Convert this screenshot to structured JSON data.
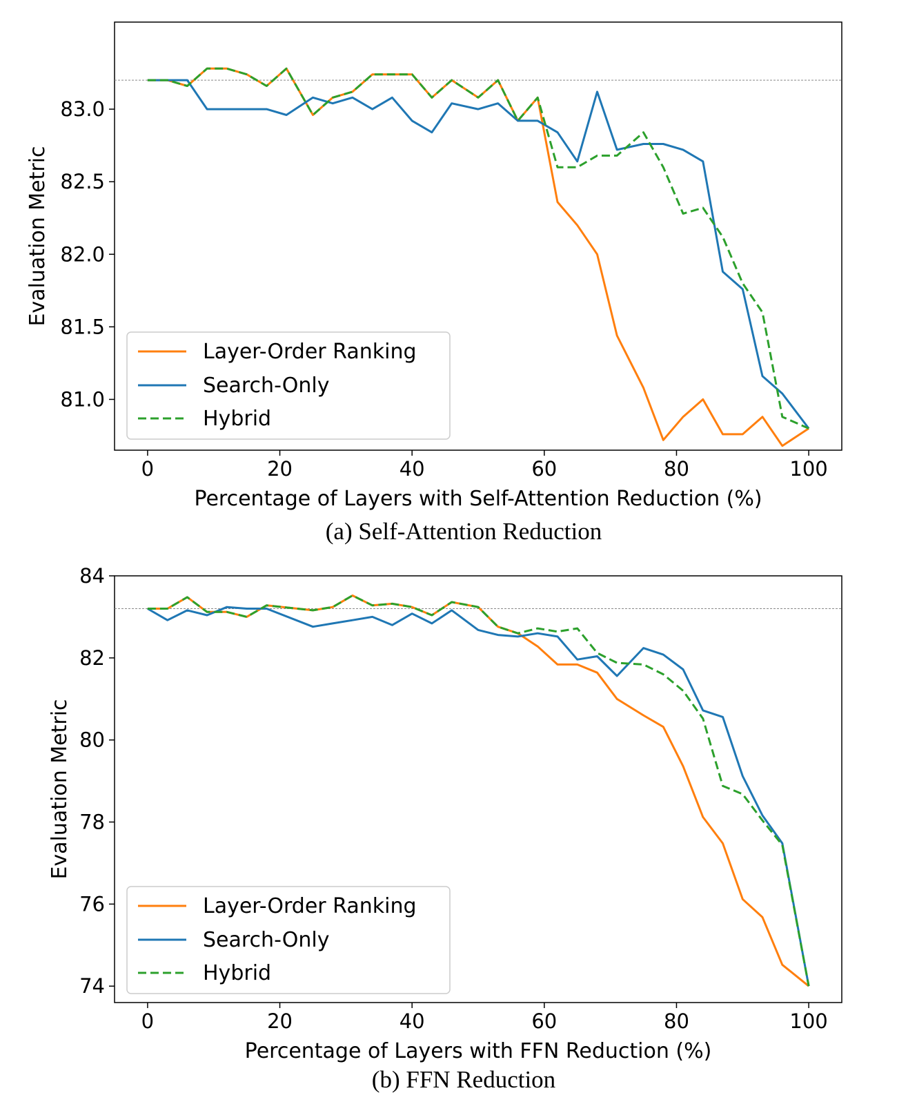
{
  "chart_data": [
    {
      "type": "line",
      "caption": "(a) Self-Attention Reduction",
      "xlabel": "Percentage of Layers with Self-Attention Reduction (%)",
      "ylabel": "Evaluation Metric",
      "xlim": [
        -5,
        105
      ],
      "ylim": [
        80.65,
        83.6
      ],
      "xticks": [
        0,
        20,
        40,
        60,
        80,
        100
      ],
      "xtick_labels": [
        "0",
        "20",
        "40",
        "60",
        "80",
        "100"
      ],
      "yticks": [
        81.0,
        81.5,
        82.0,
        82.5,
        83.0
      ],
      "ytick_labels": [
        "81.0",
        "81.5",
        "82.0",
        "82.5",
        "83.0"
      ],
      "reference_line": 83.2,
      "legend_position": "lower-left",
      "x": [
        0,
        3,
        6,
        9,
        12,
        15,
        18,
        21,
        25,
        28,
        31,
        34,
        37,
        40,
        43,
        46,
        50,
        53,
        56,
        59,
        62,
        65,
        68,
        71,
        75,
        78,
        81,
        84,
        87,
        90,
        93,
        96,
        100
      ],
      "series": [
        {
          "name": "Layer-Order Ranking",
          "color": "#ff7f0e",
          "dash": "solid",
          "values": [
            83.2,
            83.2,
            83.16,
            83.28,
            83.28,
            83.24,
            83.16,
            83.28,
            82.96,
            83.08,
            83.12,
            83.24,
            83.24,
            83.24,
            83.08,
            83.2,
            83.08,
            83.2,
            82.92,
            83.08,
            82.36,
            82.2,
            82.0,
            81.44,
            81.08,
            80.72,
            80.88,
            81.0,
            80.76,
            80.76,
            80.88,
            80.68,
            80.8
          ]
        },
        {
          "name": "Search-Only",
          "color": "#1f77b4",
          "dash": "solid",
          "values": [
            83.2,
            83.2,
            83.2,
            83.0,
            83.0,
            83.0,
            83.0,
            82.96,
            83.08,
            83.04,
            83.08,
            83.0,
            83.08,
            82.92,
            82.84,
            83.04,
            83.0,
            83.04,
            82.92,
            82.92,
            82.84,
            82.64,
            83.12,
            82.72,
            82.76,
            82.76,
            82.72,
            82.64,
            81.88,
            81.76,
            81.16,
            81.04,
            80.8
          ]
        },
        {
          "name": "Hybrid",
          "color": "#2ca02c",
          "dash": "dashed",
          "values": [
            83.2,
            83.2,
            83.16,
            83.28,
            83.28,
            83.24,
            83.16,
            83.28,
            82.96,
            83.08,
            83.12,
            83.24,
            83.24,
            83.24,
            83.08,
            83.2,
            83.08,
            83.2,
            82.92,
            83.08,
            82.6,
            82.6,
            82.68,
            82.68,
            82.84,
            82.6,
            82.28,
            82.32,
            82.12,
            81.8,
            81.6,
            80.88,
            80.8
          ]
        }
      ]
    },
    {
      "type": "line",
      "caption": "(b) FFN Reduction",
      "xlabel": "Percentage of Layers with FFN Reduction (%)",
      "ylabel": "Evaluation Metric",
      "xlim": [
        -5,
        105
      ],
      "ylim": [
        73.6,
        84.0
      ],
      "xticks": [
        0,
        20,
        40,
        60,
        80,
        100
      ],
      "xtick_labels": [
        "0",
        "20",
        "40",
        "60",
        "80",
        "100"
      ],
      "yticks": [
        74,
        76,
        78,
        80,
        82,
        84
      ],
      "ytick_labels": [
        "74",
        "76",
        "78",
        "80",
        "82",
        "84"
      ],
      "reference_line": 83.2,
      "legend_position": "lower-left",
      "x": [
        0,
        3,
        6,
        9,
        12,
        15,
        18,
        25,
        28,
        31,
        34,
        37,
        40,
        43,
        46,
        50,
        53,
        56,
        59,
        62,
        65,
        68,
        71,
        75,
        78,
        81,
        84,
        87,
        90,
        93,
        96,
        100
      ],
      "series": [
        {
          "name": "Layer-Order Ranking",
          "color": "#ff7f0e",
          "dash": "solid",
          "values": [
            83.2,
            83.2,
            83.48,
            83.12,
            83.12,
            83.0,
            83.28,
            83.16,
            83.24,
            83.52,
            83.28,
            83.32,
            83.24,
            83.04,
            83.36,
            83.24,
            82.76,
            82.6,
            82.28,
            81.84,
            81.84,
            81.64,
            81.0,
            80.6,
            80.32,
            79.36,
            78.12,
            77.48,
            76.12,
            75.68,
            74.52,
            74.0
          ]
        },
        {
          "name": "Search-Only",
          "color": "#1f77b4",
          "dash": "solid",
          "values": [
            83.2,
            82.92,
            83.16,
            83.04,
            83.24,
            83.2,
            83.2,
            82.76,
            82.84,
            82.92,
            83.0,
            82.8,
            83.08,
            82.84,
            83.16,
            82.68,
            82.56,
            82.52,
            82.6,
            82.52,
            81.96,
            82.04,
            81.56,
            82.24,
            82.08,
            81.72,
            80.72,
            80.56,
            79.12,
            78.16,
            77.48,
            74.0
          ]
        },
        {
          "name": "Hybrid",
          "color": "#2ca02c",
          "dash": "dashed",
          "values": [
            83.2,
            83.2,
            83.48,
            83.12,
            83.12,
            83.0,
            83.28,
            83.16,
            83.24,
            83.52,
            83.28,
            83.32,
            83.24,
            83.04,
            83.36,
            83.24,
            82.76,
            82.6,
            82.72,
            82.64,
            82.72,
            82.12,
            81.88,
            81.84,
            81.6,
            81.2,
            80.52,
            78.88,
            78.68,
            78.04,
            77.44,
            74.0
          ]
        }
      ]
    }
  ]
}
